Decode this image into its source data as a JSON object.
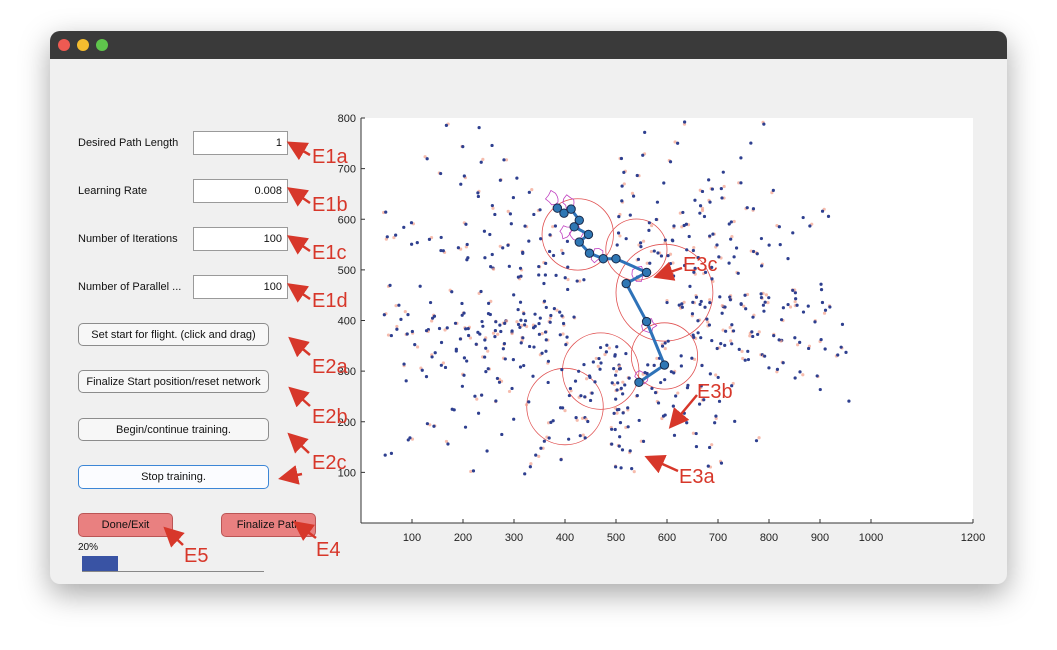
{
  "window": {
    "controls": [
      "close",
      "minimize",
      "zoom"
    ]
  },
  "params": [
    {
      "key": "desired_path_length",
      "label": "Desired Path Length",
      "value": "1"
    },
    {
      "key": "learning_rate",
      "label": "Learning Rate",
      "value": "0.008"
    },
    {
      "key": "number_of_iterations",
      "label": "Number of Iterations",
      "value": "100"
    },
    {
      "key": "number_of_parallel",
      "label": "Number of Parallel ...",
      "value": "100"
    }
  ],
  "buttons": {
    "set_start": "Set start for flight. (click and drag)",
    "finalize_start": "Finalize Start position/reset network",
    "begin_training": "Begin/continue training.",
    "stop_training": "Stop training.",
    "done_exit": "Done/Exit",
    "finalize_path": "Finalize Path"
  },
  "progress": {
    "label": "20%",
    "fraction": 0.2
  },
  "annotations": {
    "e1a": "E1a",
    "e1b": "E1b",
    "e1c": "E1c",
    "e1d": "E1d",
    "e2a": "E2a",
    "e2b": "E2b",
    "e2c": "E2c",
    "e3a": "E3a",
    "e3b": "E3b",
    "e3c": "E3c",
    "e4": "E4",
    "e5": "E5"
  },
  "colors": {
    "annotation": "#d7372a",
    "points": "#2e3f8f",
    "halo": "#f2a08a",
    "path": "#2e72b8",
    "node_fill": "#2f77b4",
    "region": "#e05050",
    "contour": "#c040c0",
    "progress": "#3953a4"
  },
  "chart_data": {
    "type": "scatter",
    "xlim": [
      0,
      1200
    ],
    "ylim": [
      0,
      800
    ],
    "xticks": [
      100,
      200,
      300,
      400,
      500,
      600,
      700,
      800,
      900,
      1000,
      1200
    ],
    "yticks": [
      100,
      200,
      300,
      400,
      500,
      600,
      700,
      800
    ],
    "scatter_seed": 7,
    "path_points": [
      [
        385,
        622
      ],
      [
        398,
        612
      ],
      [
        412,
        620
      ],
      [
        428,
        598
      ],
      [
        418,
        585
      ],
      [
        446,
        570
      ],
      [
        428,
        555
      ],
      [
        448,
        533
      ],
      [
        475,
        522
      ],
      [
        500,
        522
      ],
      [
        560,
        495
      ],
      [
        520,
        473
      ],
      [
        560,
        398
      ],
      [
        595,
        312
      ],
      [
        545,
        278
      ]
    ],
    "regions": [
      {
        "cx": 425,
        "cy": 570,
        "r": 70
      },
      {
        "cx": 540,
        "cy": 540,
        "r": 60
      },
      {
        "cx": 595,
        "cy": 455,
        "r": 95
      },
      {
        "cx": 595,
        "cy": 330,
        "r": 65
      },
      {
        "cx": 470,
        "cy": 300,
        "r": 75
      },
      {
        "cx": 400,
        "cy": 230,
        "r": 75
      }
    ]
  }
}
